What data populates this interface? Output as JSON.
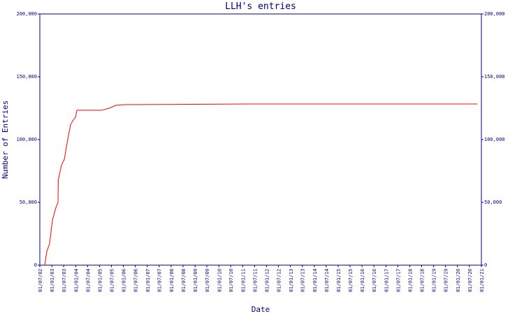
{
  "chart_data": {
    "type": "line",
    "title": "LLH's entries",
    "xlabel": "Date",
    "ylabel": "Number of Entries",
    "x": [
      "2002-09-14",
      "2002-10-16",
      "2002-11-27",
      "2003-01-10",
      "2003-03-05",
      "2003-04-05",
      "2003-04-10",
      "2003-05-30",
      "2003-07-10",
      "2003-09-01",
      "2003-10-15",
      "2003-11-25",
      "2003-12-30",
      "2004-01-20",
      "2005-01-28",
      "2005-06-01",
      "2005-09-01",
      "2006-01-05",
      "2011-03-24",
      "2020-11-01"
    ],
    "series": [
      {
        "name": "LLH",
        "color": "#ff0000",
        "values": [
          0,
          11000,
          17000,
          36000,
          46000,
          50000,
          68000,
          80000,
          84000,
          100000,
          112000,
          115500,
          117800,
          123300,
          123300,
          125000,
          127200,
          127800,
          128300,
          128300
        ]
      }
    ],
    "xlim": [
      "2002-07-01",
      "2021-01-01"
    ],
    "xticks": [
      {
        "value": "2002-07-01",
        "label": "01/07/02"
      },
      {
        "value": "2003-01-01",
        "label": "01/01/03"
      },
      {
        "value": "2003-07-01",
        "label": "01/07/03"
      },
      {
        "value": "2004-01-01",
        "label": "01/01/04"
      },
      {
        "value": "2004-07-01",
        "label": "01/07/04"
      },
      {
        "value": "2005-01-01",
        "label": "01/01/05"
      },
      {
        "value": "2005-07-01",
        "label": "01/07/05"
      },
      {
        "value": "2006-01-01",
        "label": "01/01/06"
      },
      {
        "value": "2006-07-01",
        "label": "01/07/06"
      },
      {
        "value": "2007-01-01",
        "label": "01/01/07"
      },
      {
        "value": "2007-07-01",
        "label": "01/07/07"
      },
      {
        "value": "2008-01-01",
        "label": "01/01/08"
      },
      {
        "value": "2008-07-01",
        "label": "01/07/08"
      },
      {
        "value": "2009-01-01",
        "label": "01/01/09"
      },
      {
        "value": "2009-07-01",
        "label": "01/07/09"
      },
      {
        "value": "2010-01-01",
        "label": "01/01/10"
      },
      {
        "value": "2010-07-01",
        "label": "01/07/10"
      },
      {
        "value": "2011-01-01",
        "label": "01/01/11"
      },
      {
        "value": "2011-07-01",
        "label": "01/07/11"
      },
      {
        "value": "2012-01-01",
        "label": "01/01/12"
      },
      {
        "value": "2012-07-01",
        "label": "01/07/12"
      },
      {
        "value": "2013-01-01",
        "label": "01/01/13"
      },
      {
        "value": "2013-07-01",
        "label": "01/07/13"
      },
      {
        "value": "2014-01-01",
        "label": "01/01/14"
      },
      {
        "value": "2014-07-01",
        "label": "01/07/14"
      },
      {
        "value": "2015-01-01",
        "label": "01/01/15"
      },
      {
        "value": "2015-07-01",
        "label": "01/07/15"
      },
      {
        "value": "2016-01-01",
        "label": "01/01/16"
      },
      {
        "value": "2016-07-01",
        "label": "01/07/16"
      },
      {
        "value": "2017-01-01",
        "label": "01/01/17"
      },
      {
        "value": "2017-07-01",
        "label": "01/07/17"
      },
      {
        "value": "2018-01-01",
        "label": "01/01/18"
      },
      {
        "value": "2018-07-01",
        "label": "01/07/18"
      },
      {
        "value": "2019-01-01",
        "label": "01/01/19"
      },
      {
        "value": "2019-07-01",
        "label": "01/07/19"
      },
      {
        "value": "2020-01-01",
        "label": "01/01/20"
      },
      {
        "value": "2020-07-01",
        "label": "01/07/20"
      },
      {
        "value": "2021-01-01",
        "label": "01/01/21"
      }
    ],
    "ylim": [
      0,
      200000
    ],
    "yticks": [
      0,
      {
        "value": 50000,
        "label": "50,000"
      },
      {
        "value": 100000,
        "label": "100,000"
      },
      {
        "value": 150000,
        "label": "150,000"
      },
      {
        "value": 200000,
        "label": "200,000"
      }
    ],
    "y2lim": [
      0,
      200000
    ],
    "y2ticks": [
      0,
      {
        "value": 50000,
        "label": "50,000"
      },
      {
        "value": 100000,
        "label": "100,000"
      },
      {
        "value": 150000,
        "label": "150,000"
      },
      {
        "value": 200000,
        "label": "200,000"
      }
    ],
    "axis_color": "#000080"
  }
}
